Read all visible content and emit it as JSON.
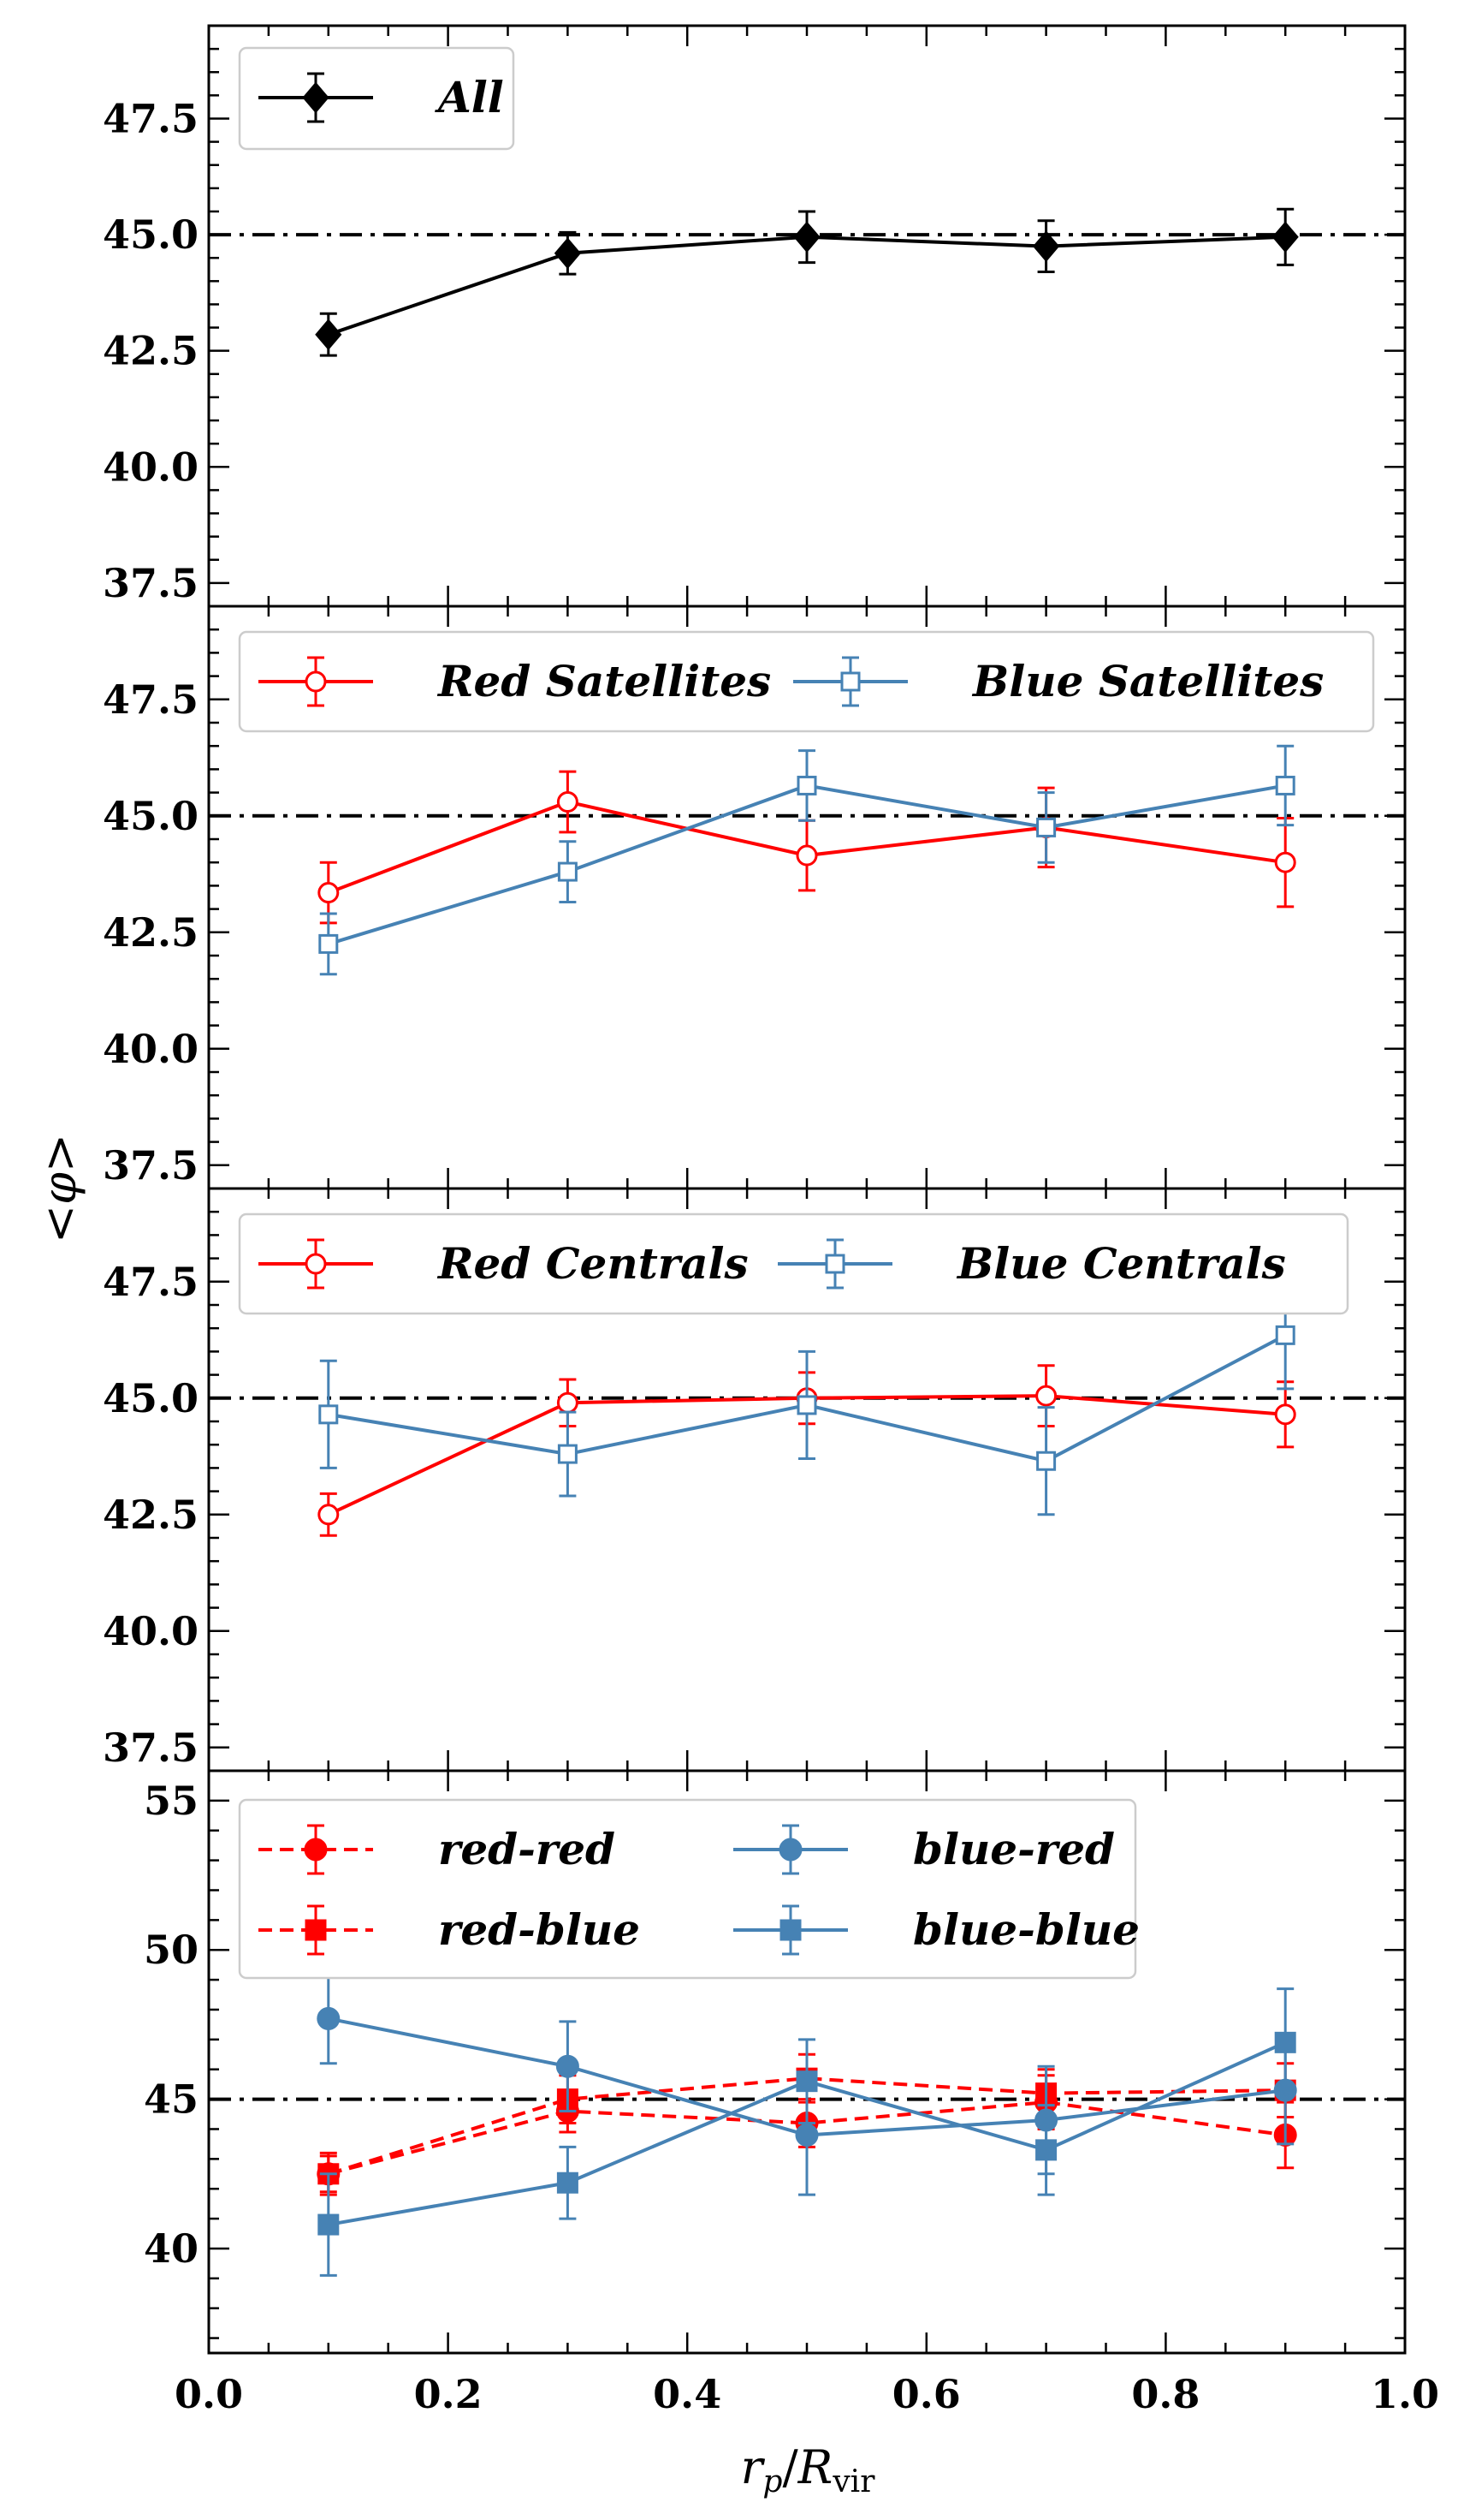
{
  "chart_data": {
    "type": "line",
    "xlabel": "r_p/R_vir",
    "ylabel": "<φ>",
    "xlim": [
      0.0,
      1.0
    ],
    "x_ticks": [
      "0.0",
      "0.2",
      "0.4",
      "0.6",
      "0.8",
      "1.0"
    ],
    "x": [
      0.1,
      0.3,
      0.5,
      0.7,
      0.9
    ],
    "reference_line": 45.0,
    "panels": [
      {
        "ylim": [
          37.0,
          49.5
        ],
        "y_ticks": [
          "37.5",
          "40.0",
          "42.5",
          "45.0",
          "47.5"
        ],
        "legend": {
          "position": "top-left",
          "columns": 1
        },
        "series": [
          {
            "name": "All",
            "color": "#000000",
            "marker": "diamond",
            "filled": true,
            "dash": false,
            "values": [
              42.85,
              44.6,
              44.95,
              44.75,
              44.95
            ],
            "errors": [
              0.45,
              0.45,
              0.55,
              0.55,
              0.6
            ]
          }
        ]
      },
      {
        "ylim": [
          37.0,
          49.5
        ],
        "y_ticks": [
          "37.5",
          "40.0",
          "42.5",
          "45.0",
          "47.5"
        ],
        "legend": {
          "position": "top-left",
          "columns": 2
        },
        "series": [
          {
            "name": "Red Satellites",
            "color": "#ff0000",
            "marker": "circle",
            "filled": false,
            "dash": false,
            "values": [
              43.35,
              45.3,
              44.15,
              44.75,
              44.0
            ],
            "errors": [
              0.65,
              0.65,
              0.75,
              0.85,
              0.95
            ]
          },
          {
            "name": "Blue Satellites",
            "color": "#4682b4",
            "marker": "square",
            "filled": false,
            "dash": false,
            "values": [
              42.25,
              43.8,
              45.65,
              44.75,
              45.65
            ],
            "errors": [
              0.65,
              0.65,
              0.75,
              0.75,
              0.85
            ]
          }
        ]
      },
      {
        "ylim": [
          37.0,
          49.5
        ],
        "y_ticks": [
          "37.5",
          "40.0",
          "42.5",
          "45.0",
          "47.5"
        ],
        "legend": {
          "position": "top-left",
          "columns": 2
        },
        "series": [
          {
            "name": "Red Centrals",
            "color": "#ff0000",
            "marker": "circle",
            "filled": false,
            "dash": false,
            "values": [
              42.5,
              44.9,
              45.0,
              45.05,
              44.65
            ],
            "errors": [
              0.45,
              0.5,
              0.55,
              0.65,
              0.7
            ]
          },
          {
            "name": "Blue Centrals",
            "color": "#4682b4",
            "marker": "square",
            "filled": false,
            "dash": false,
            "values": [
              44.65,
              43.8,
              44.85,
              43.65,
              46.35
            ],
            "errors": [
              1.15,
              0.9,
              1.15,
              1.15,
              1.15
            ]
          }
        ]
      },
      {
        "ylim": [
          36.5,
          56.0
        ],
        "y_ticks": [
          "40",
          "45",
          "50",
          "55"
        ],
        "legend": {
          "position": "top-left",
          "columns": 2
        },
        "series": [
          {
            "name": "red-red",
            "color": "#ff0000",
            "marker": "circle",
            "filled": true,
            "dash": true,
            "values": [
              42.5,
              44.6,
              44.2,
              44.9,
              43.8
            ],
            "errors": [
              0.6,
              0.7,
              0.8,
              0.9,
              1.1
            ]
          },
          {
            "name": "red-blue",
            "color": "#ff0000",
            "marker": "square",
            "filled": true,
            "dash": true,
            "values": [
              42.5,
              45.0,
              45.7,
              45.2,
              45.3
            ],
            "errors": [
              0.7,
              0.8,
              0.8,
              0.8,
              0.9
            ]
          },
          {
            "name": "blue-red",
            "color": "#4682b4",
            "marker": "circle",
            "filled": true,
            "dash": false,
            "values": [
              47.7,
              46.1,
              43.8,
              44.3,
              45.3
            ],
            "errors": [
              1.5,
              1.5,
              2.0,
              1.8,
              1.8
            ]
          },
          {
            "name": "blue-blue",
            "color": "#4682b4",
            "marker": "square",
            "filled": true,
            "dash": false,
            "values": [
              40.8,
              42.2,
              45.6,
              43.3,
              46.9
            ],
            "errors": [
              1.7,
              1.2,
              1.4,
              1.5,
              1.8
            ]
          }
        ]
      }
    ]
  }
}
